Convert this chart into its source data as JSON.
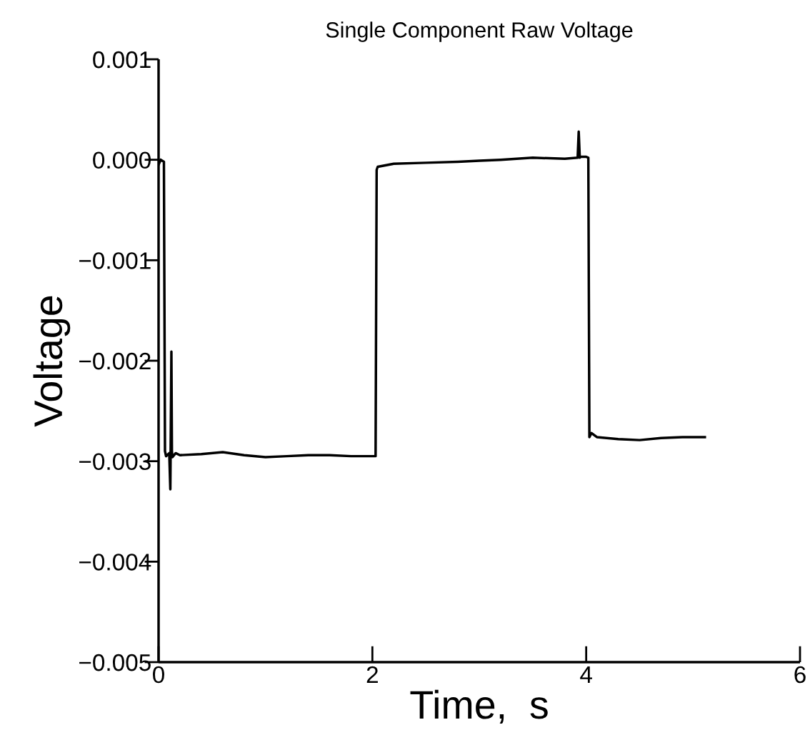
{
  "chart_data": {
    "type": "line",
    "title": "Single Component Raw Voltage",
    "xlabel": "Time,  s",
    "ylabel": "Voltage",
    "x": [
      0,
      0.02,
      0.05,
      0.06,
      0.07,
      0.1,
      0.11,
      0.12,
      0.125,
      0.13,
      0.16,
      0.2,
      0.4,
      0.6,
      0.8,
      1.0,
      1.2,
      1.4,
      1.6,
      1.8,
      2.0,
      2.03,
      2.04,
      2.05,
      2.2,
      2.5,
      2.8,
      3.0,
      3.2,
      3.5,
      3.8,
      3.92,
      3.93,
      3.94,
      3.95,
      4.0,
      4.02,
      4.03,
      4.05,
      4.1,
      4.3,
      4.5,
      4.7,
      4.9,
      5.11
    ],
    "series": [
      {
        "color": "#000000",
        "values": [
          -5e-05,
          0.0,
          -2e-05,
          -0.0029,
          -0.00295,
          -0.00292,
          -0.00328,
          -0.00191,
          -0.0029,
          -0.00296,
          -0.00292,
          -0.00294,
          -0.00293,
          -0.00291,
          -0.00294,
          -0.00296,
          -0.00295,
          -0.00294,
          -0.00294,
          -0.00295,
          -0.00295,
          -0.00295,
          -0.0001,
          -7e-05,
          -4e-05,
          -3e-05,
          -2e-05,
          -1e-05,
          0.0,
          2e-05,
          1e-05,
          2e-05,
          0.00028,
          2e-05,
          3e-05,
          3e-05,
          2e-05,
          -0.00276,
          -0.00272,
          -0.00276,
          -0.00278,
          -0.00279,
          -0.00277,
          -0.00276,
          -0.00276
        ]
      }
    ],
    "xlim": [
      0,
      6
    ],
    "ylim": [
      -0.005,
      0.001
    ],
    "xticks": [
      0,
      2,
      4,
      6
    ],
    "yticks": [
      {
        "value": -0.005,
        "label": "−0.005"
      },
      {
        "value": -0.004,
        "label": "−0.004"
      },
      {
        "value": -0.003,
        "label": "−0.003"
      },
      {
        "value": -0.002,
        "label": "−0.002"
      },
      {
        "value": -0.001,
        "label": "−0.001"
      },
      {
        "value": 0.0,
        "label": "0.000"
      },
      {
        "value": 0.001,
        "label": "0.001"
      }
    ],
    "marker": "none",
    "line_style": "solid",
    "grid": false
  }
}
